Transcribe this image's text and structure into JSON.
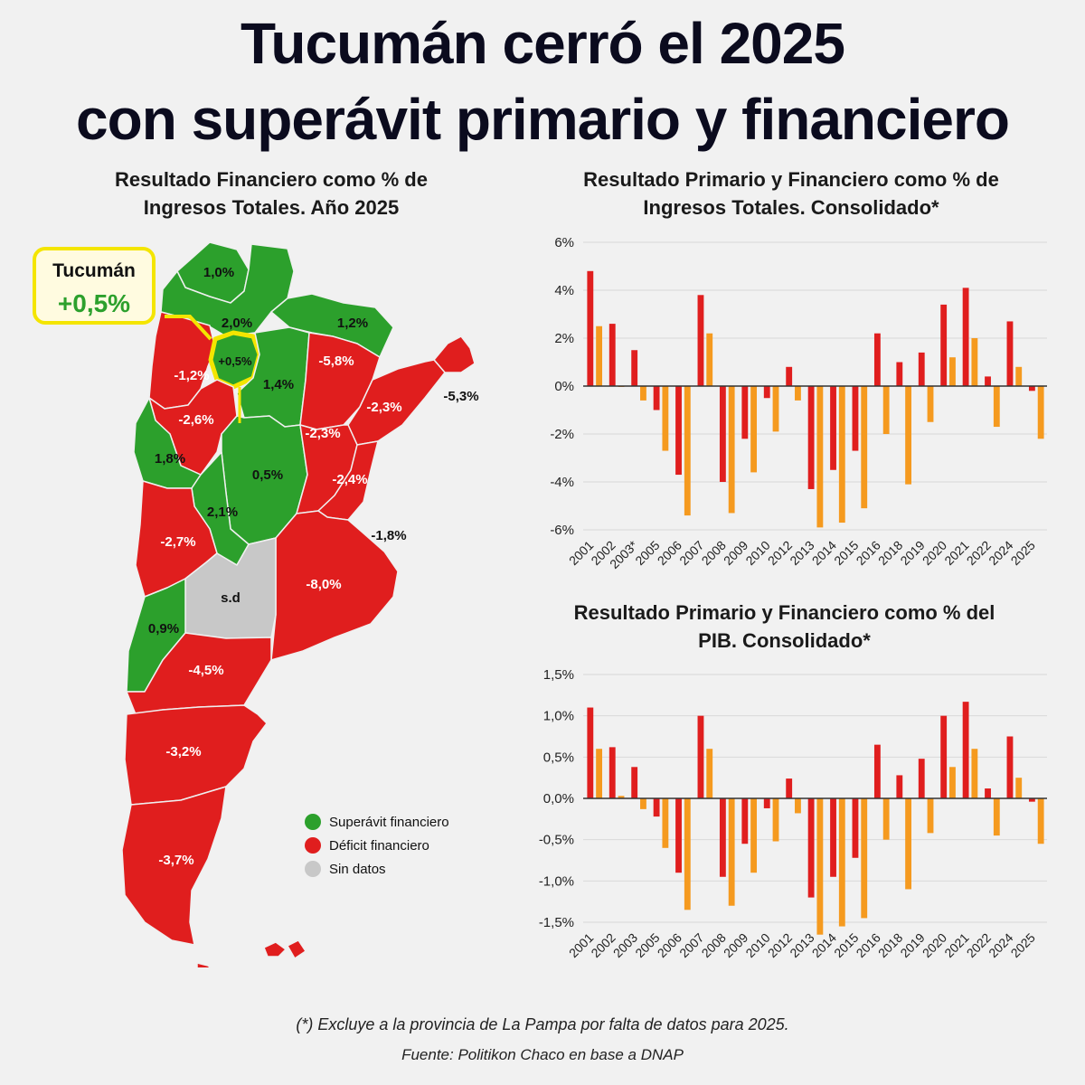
{
  "title": {
    "line1": "Tucumán cerró el 2025",
    "line2": "con superávit primario y financiero"
  },
  "map": {
    "title_line1": "Resultado Financiero como % de",
    "title_line2": "Ingresos Totales. Año 2025",
    "callout": {
      "name": "Tucumán",
      "value": "+0,5%"
    },
    "legend": [
      {
        "label": "Superávit financiero",
        "color": "#2ca02c"
      },
      {
        "label": "Déficit financiero",
        "color": "#e01e1e"
      },
      {
        "label": "Sin datos",
        "color": "#c8c8c8"
      }
    ],
    "provinces": [
      {
        "value": "1,0%",
        "status": "surplus"
      },
      {
        "value": "2,0%",
        "status": "surplus"
      },
      {
        "value": "1,2%",
        "status": "surplus"
      },
      {
        "value": "+0,5%",
        "status": "surplus"
      },
      {
        "value": "-1,2%",
        "status": "deficit"
      },
      {
        "value": "-5,8%",
        "status": "deficit"
      },
      {
        "value": "1,4%",
        "status": "surplus"
      },
      {
        "value": "-5,3%",
        "status": "deficit"
      },
      {
        "value": "-2,6%",
        "status": "deficit"
      },
      {
        "value": "-2,3%",
        "status": "deficit"
      },
      {
        "value": "-2,3%",
        "status": "deficit"
      },
      {
        "value": "1,8%",
        "status": "surplus"
      },
      {
        "value": "0,5%",
        "status": "surplus"
      },
      {
        "value": "-2,4%",
        "status": "deficit"
      },
      {
        "value": "2,1%",
        "status": "surplus"
      },
      {
        "value": "-2,7%",
        "status": "deficit"
      },
      {
        "value": "-1,8%",
        "status": "deficit"
      },
      {
        "value": "s.d",
        "status": "nodata"
      },
      {
        "value": "-8,0%",
        "status": "deficit"
      },
      {
        "value": "0,9%",
        "status": "surplus"
      },
      {
        "value": "-4,5%",
        "status": "deficit"
      },
      {
        "value": "-3,2%",
        "status": "deficit"
      },
      {
        "value": "-3,7%",
        "status": "deficit"
      }
    ]
  },
  "colors": {
    "primary": "#e01e1e",
    "financial": "#f59a1f",
    "surplus": "#2ca02c",
    "deficit": "#e01e1e",
    "nodata": "#c8c8c8",
    "highlight": "#f4e500"
  },
  "chart_data": [
    {
      "type": "bar",
      "title": "Resultado Primario y Financiero como % de Ingresos Totales. Consolidado*",
      "categories": [
        "2001",
        "2002",
        "2003*",
        "2005",
        "2006",
        "2007",
        "2008",
        "2009",
        "2010",
        "2012",
        "2013",
        "2014",
        "2015",
        "2016",
        "2018",
        "2019",
        "2020",
        "2021",
        "2022",
        "2024",
        "2025"
      ],
      "series": [
        {
          "values": [
            4.8,
            2.6,
            1.5,
            -1.0,
            -3.7,
            3.8,
            -4.0,
            -2.2,
            -0.5,
            0.8,
            -4.3,
            -3.5,
            -2.7,
            2.2,
            1.0,
            1.4,
            3.4,
            4.1,
            0.4,
            2.7,
            -0.2
          ]
        },
        {
          "values": [
            2.5,
            0.0,
            -0.6,
            -2.7,
            -5.4,
            2.2,
            -5.3,
            -3.6,
            -1.9,
            -0.6,
            -5.9,
            -5.7,
            -5.1,
            -2.0,
            -4.1,
            -1.5,
            1.2,
            2.0,
            -1.7,
            0.8,
            -2.2
          ]
        }
      ],
      "ylim": [
        -6,
        6
      ],
      "yticks": [
        "6%",
        "4%",
        "2%",
        "0%",
        "-2%",
        "-4%",
        "-6%"
      ]
    },
    {
      "type": "bar",
      "title": "Resultado Primario y Financiero como % del PIB. Consolidado*",
      "categories": [
        "2001",
        "2002",
        "2003",
        "2005",
        "2006",
        "2007",
        "2008",
        "2009",
        "2010",
        "2012",
        "2013",
        "2014",
        "2015",
        "2016",
        "2018",
        "2019",
        "2020",
        "2021",
        "2022",
        "2024",
        "2025"
      ],
      "series": [
        {
          "values": [
            1.1,
            0.62,
            0.38,
            -0.22,
            -0.9,
            1.0,
            -0.95,
            -0.55,
            -0.12,
            0.24,
            -1.2,
            -0.95,
            -0.72,
            0.65,
            0.28,
            0.48,
            1.0,
            1.17,
            0.12,
            0.75,
            -0.04
          ]
        },
        {
          "values": [
            0.6,
            0.03,
            -0.13,
            -0.6,
            -1.35,
            0.6,
            -1.3,
            -0.9,
            -0.52,
            -0.18,
            -1.65,
            -1.55,
            -1.45,
            -0.5,
            -1.1,
            -0.42,
            0.38,
            0.6,
            -0.45,
            0.25,
            -0.55
          ]
        }
      ],
      "ylim": [
        -1.5,
        1.5
      ],
      "yticks": [
        "1,5%",
        "1,0%",
        "0,5%",
        "0,0%",
        "-0,5%",
        "-1,0%",
        "-1,5%"
      ]
    }
  ],
  "footnote": "(*) Excluye a la provincia de La Pampa por falta de datos para 2025.",
  "source": "Fuente: Politikon Chaco en base a DNAP"
}
